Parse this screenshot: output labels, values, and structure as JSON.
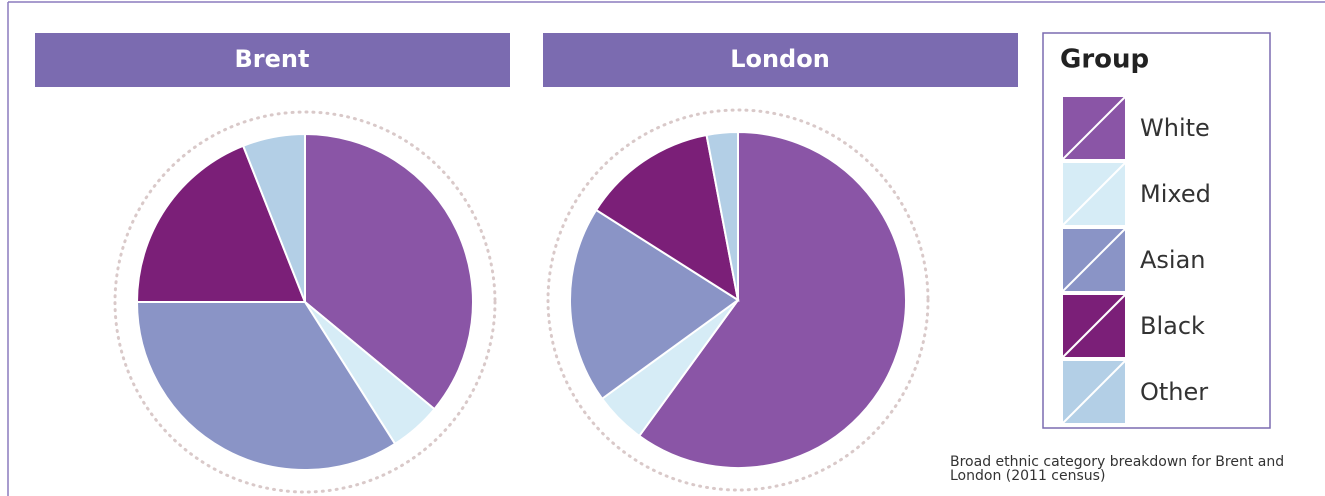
{
  "chart_data": {
    "type": "pie",
    "categories": [
      "White",
      "Mixed",
      "Asian",
      "Black",
      "Other"
    ],
    "colors": [
      "#8a55a6",
      "#d6ecf6",
      "#8a94c6",
      "#7b1f78",
      "#b3cfe6"
    ],
    "series": [
      {
        "name": "Brent",
        "values": [
          36,
          5,
          34,
          19,
          6
        ]
      },
      {
        "name": "London",
        "values": [
          60,
          5,
          19,
          13,
          3
        ]
      }
    ],
    "legend_title": "Group",
    "caption": "Broad ethnic category breakdown for Brent and London (2011 census)"
  }
}
